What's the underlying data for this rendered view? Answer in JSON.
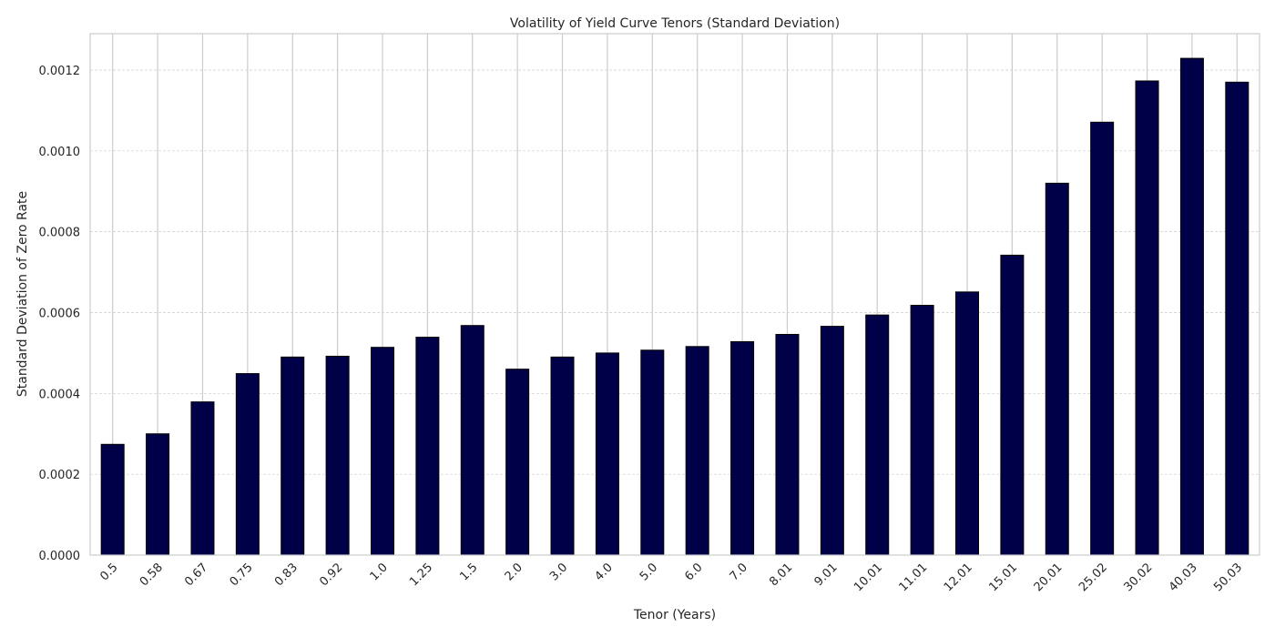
{
  "chart_data": {
    "type": "bar",
    "title": "Volatility of Yield Curve Tenors (Standard Deviation)",
    "xlabel": "Tenor (Years)",
    "ylabel": "Standard Deviation of Zero Rate",
    "categories": [
      "0.5",
      "0.58",
      "0.67",
      "0.75",
      "0.83",
      "0.92",
      "1.0",
      "1.25",
      "1.5",
      "2.0",
      "3.0",
      "4.0",
      "5.0",
      "6.0",
      "7.0",
      "8.01",
      "9.01",
      "10.01",
      "11.01",
      "12.01",
      "15.01",
      "20.01",
      "25.02",
      "30.02",
      "40.03",
      "50.03"
    ],
    "values": [
      0.000274,
      0.0003,
      0.000379,
      0.000449,
      0.00049,
      0.000492,
      0.000514,
      0.000539,
      0.000568,
      0.00046,
      0.00049,
      0.0005,
      0.000507,
      0.000516,
      0.000528,
      0.000546,
      0.000566,
      0.000594,
      0.000618,
      0.000651,
      0.000742,
      0.00092,
      0.001071,
      0.001173,
      0.001229,
      0.00117
    ],
    "ylim": [
      0,
      0.00129
    ],
    "yticks": [
      "0.0000",
      "0.0002",
      "0.0004",
      "0.0006",
      "0.0008",
      "0.0010",
      "0.0012"
    ],
    "ytick_values": [
      0,
      0.0002,
      0.0004,
      0.0006,
      0.0008,
      0.001,
      0.0012
    ],
    "grid": true,
    "colors": {
      "bar": "#000048",
      "bar_edge": "#000000",
      "grid_x": "#cccccc",
      "grid_y": "#cccccc",
      "axes": "#cccccc"
    }
  }
}
